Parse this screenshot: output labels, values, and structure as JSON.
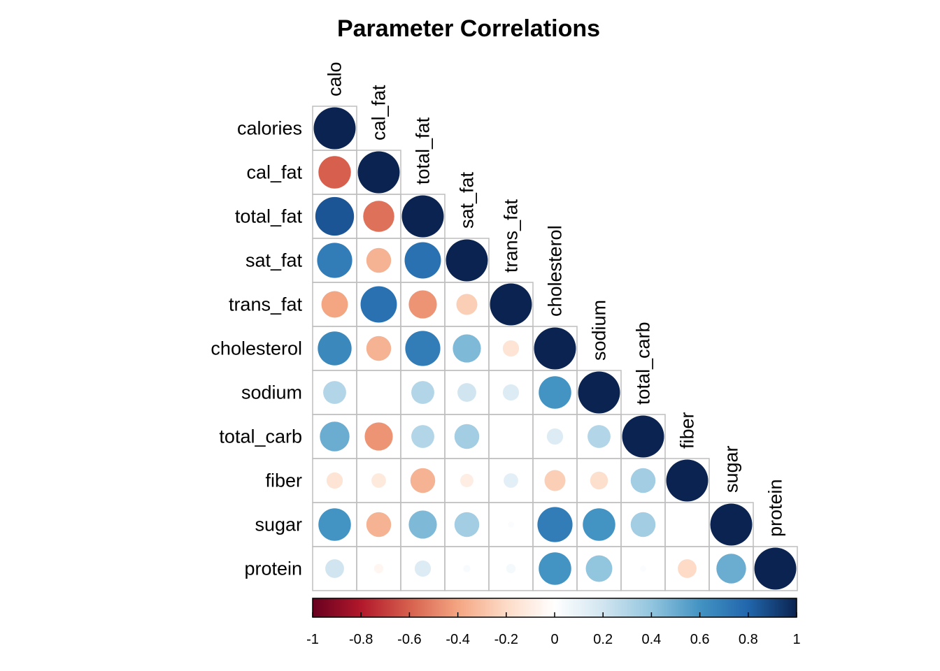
{
  "chart_data": {
    "type": "heatmap",
    "title": "Parameter Correlations",
    "variables": [
      "calories",
      "cal_fat",
      "total_fat",
      "sat_fat",
      "trans_fat",
      "cholesterol",
      "sodium",
      "total_carb",
      "fiber",
      "sugar",
      "protein"
    ],
    "column_labels": [
      "calo",
      "cal_fat",
      "total_fat",
      "sat_fat",
      "trans_fat",
      "cholesterol",
      "sodium",
      "total_carb",
      "fiber",
      "sugar",
      "protein"
    ],
    "shape": "lower-triangle circles",
    "values": [
      [
        1.0
      ],
      [
        -0.6,
        1.0
      ],
      [
        0.85,
        -0.55,
        1.0
      ],
      [
        0.7,
        -0.35,
        0.75,
        1.0
      ],
      [
        -0.4,
        0.75,
        -0.45,
        -0.25,
        1.0
      ],
      [
        0.65,
        -0.35,
        0.7,
        0.45,
        -0.15,
        1.0
      ],
      [
        0.3,
        0.0,
        0.3,
        0.2,
        0.15,
        0.6,
        1.0
      ],
      [
        0.5,
        -0.45,
        0.3,
        0.35,
        0.0,
        0.15,
        0.3,
        1.0
      ],
      [
        -0.15,
        -0.12,
        -0.35,
        -0.1,
        0.12,
        -0.25,
        -0.18,
        0.35,
        1.0
      ],
      [
        0.6,
        -0.35,
        0.45,
        0.35,
        0.02,
        0.7,
        0.6,
        0.35,
        0.0,
        1.0
      ],
      [
        0.2,
        -0.05,
        0.15,
        0.03,
        0.05,
        0.6,
        0.4,
        0.02,
        -0.2,
        0.5,
        1.0
      ]
    ],
    "colorbar": {
      "range": [
        -1,
        1
      ],
      "ticks": [
        "-1",
        "-0.8",
        "-0.6",
        "-0.4",
        "-0.2",
        "0",
        "0.2",
        "0.4",
        "0.6",
        "0.8",
        "1"
      ]
    },
    "colors": {
      "negative_end": "#67001f",
      "mid": "#f7f7f7",
      "positive_end": "#0b2350",
      "grid": "#bebebe"
    }
  }
}
